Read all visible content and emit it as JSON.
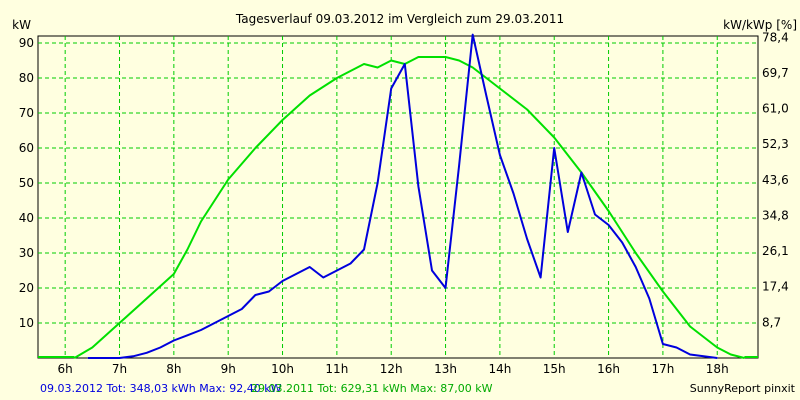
{
  "chart_data": {
    "type": "line",
    "title": "Tagesverlauf 09.03.2012 im Vergleich zum 29.03.2011",
    "ylabel_left": "kW",
    "ylabel_right": "kW/kWp [%]",
    "xlim": [
      5.5,
      18.75
    ],
    "ylim": [
      0,
      92
    ],
    "grid": true,
    "x_ticks": [
      6,
      7,
      8,
      9,
      10,
      11,
      12,
      13,
      14,
      15,
      16,
      17,
      18
    ],
    "x_tick_labels": [
      "6h",
      "7h",
      "8h",
      "9h",
      "10h",
      "11h",
      "12h",
      "13h",
      "14h",
      "15h",
      "16h",
      "17h",
      "18h"
    ],
    "y_ticks": [
      10,
      20,
      30,
      40,
      50,
      60,
      70,
      80,
      90
    ],
    "y_tick_labels": [
      "10",
      "20",
      "30",
      "40",
      "50",
      "60",
      "70",
      "80",
      "90"
    ],
    "y2_ticks": [
      8.7,
      17.4,
      26.1,
      34.8,
      43.6,
      52.3,
      61.0,
      69.7,
      78.4
    ],
    "y2_tick_labels": [
      "8,7",
      "17,4",
      "26,1",
      "34,8",
      "43,6",
      "52,3",
      "61,0",
      "69,7",
      "78,4"
    ],
    "y2_tick_y": [
      10.2,
      20.4,
      30.6,
      40.7,
      50.9,
      61.1,
      71.3,
      81.5,
      91.6
    ],
    "series": [
      {
        "name": "09.03.2012",
        "color": "#0000dd",
        "x": [
          6.42,
          6.75,
          7.0,
          7.25,
          7.5,
          7.75,
          8.0,
          8.25,
          8.5,
          8.75,
          9.0,
          9.25,
          9.5,
          9.75,
          10.0,
          10.25,
          10.5,
          10.75,
          11.0,
          11.25,
          11.5,
          11.75,
          12.0,
          12.25,
          12.5,
          12.75,
          13.0,
          13.25,
          13.5,
          13.75,
          14.0,
          14.25,
          14.5,
          14.75,
          15.0,
          15.25,
          15.5,
          15.75,
          16.0,
          16.25,
          16.5,
          16.75,
          17.0,
          17.25,
          17.5,
          17.75,
          18.0
        ],
        "y": [
          0,
          0,
          0,
          0.5,
          1.5,
          3.0,
          5.0,
          6.5,
          8.0,
          10.0,
          12.0,
          14.0,
          18.0,
          19.0,
          22.0,
          24.0,
          26.0,
          23.0,
          25.0,
          27.0,
          31.0,
          50.0,
          77.0,
          84.0,
          49.0,
          25.0,
          20.0,
          55.0,
          92.4,
          75.0,
          58.0,
          47.0,
          34.0,
          23.0,
          60.0,
          36.0,
          53.0,
          41.0,
          38.0,
          33.0,
          26.0,
          17.0,
          4.0,
          3.0,
          1.0,
          0.5,
          0
        ],
        "total_label": "09.03.2012 Tot: 348,03 kWh Max: 92,40 kW"
      },
      {
        "name": "29.03.2011",
        "color": "#00dd00",
        "x": [
          6.17,
          6.5,
          7.0,
          7.5,
          8.0,
          8.25,
          8.5,
          9.0,
          9.5,
          10.0,
          10.5,
          11.0,
          11.5,
          11.75,
          12.0,
          12.25,
          12.5,
          12.75,
          13.0,
          13.25,
          13.5,
          14.0,
          14.5,
          15.0,
          15.5,
          16.0,
          16.5,
          17.0,
          17.5,
          18.0,
          18.25,
          18.5
        ],
        "y": [
          0,
          3,
          10,
          17,
          24,
          31,
          39,
          51,
          60,
          68,
          75,
          80,
          84,
          83,
          85,
          84,
          86,
          86,
          86,
          85,
          83,
          77,
          71,
          63,
          53,
          42,
          30,
          19,
          9,
          3,
          1,
          0
        ],
        "total_label": "29.03.2011 Tot: 629,31 kWh Max: 87,00 kW"
      }
    ],
    "footer_right": "SunnyReport pinxit"
  }
}
